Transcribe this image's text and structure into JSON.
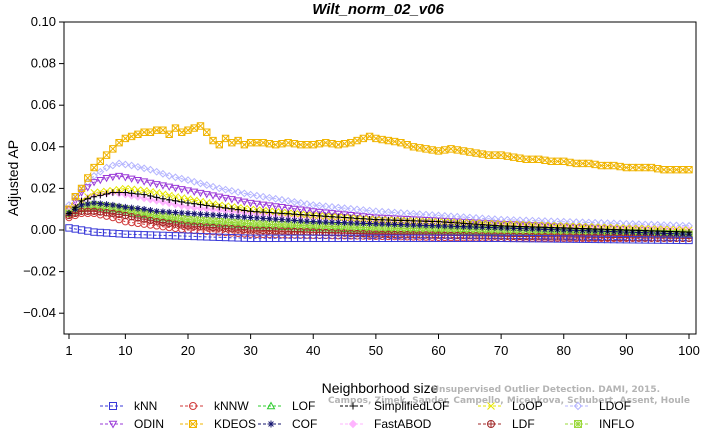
{
  "chart_data": {
    "type": "line",
    "title": "Wilt_norm_02_v06",
    "xlabel": "Neighborhood size",
    "ylabel": "Adjusted AP",
    "xlim": [
      0,
      100
    ],
    "ylim": [
      -0.05,
      0.1
    ],
    "x_ticks": [
      1,
      10,
      20,
      30,
      40,
      50,
      60,
      70,
      80,
      90,
      100
    ],
    "y_ticks": [
      -0.04,
      -0.02,
      0.0,
      0.02,
      0.04,
      0.06,
      0.08,
      0.1
    ],
    "y_tick_labels": [
      "−0.04",
      "−0.02",
      "0.00",
      "0.02",
      "0.04",
      "0.06",
      "0.08",
      "0.10"
    ],
    "grid": false,
    "legend_position": "bottom",
    "watermark": [
      "Unsupervised Outlier Detection. DAMI, 2015.",
      "Campos, Zimek, Sander, Campello, Micenkova, Schubert, Assent, Houle"
    ],
    "series": [
      {
        "name": "kNN",
        "color": "#3a3ad8",
        "marker": "square",
        "x": [
          1,
          5,
          10,
          20,
          30,
          50,
          70,
          100
        ],
        "y": [
          0.001,
          -0.001,
          -0.002,
          -0.003,
          -0.004,
          -0.004,
          -0.004,
          -0.005
        ]
      },
      {
        "name": "kNNW",
        "color": "#d03a3a",
        "marker": "circle",
        "x": [
          1,
          3,
          5,
          8,
          10,
          15,
          20,
          30,
          50,
          70,
          100
        ],
        "y": [
          0.006,
          0.008,
          0.008,
          0.006,
          0.004,
          0.002,
          0.0,
          -0.002,
          -0.003,
          -0.004,
          -0.004
        ]
      },
      {
        "name": "LOF",
        "color": "#2ecc2e",
        "marker": "triangle-up",
        "x": [
          1,
          3,
          5,
          8,
          10,
          15,
          20,
          30,
          50,
          70,
          100
        ],
        "y": [
          0.008,
          0.01,
          0.011,
          0.01,
          0.009,
          0.006,
          0.004,
          0.002,
          0.0,
          -0.001,
          -0.002
        ]
      },
      {
        "name": "SimplifiedLOF",
        "color": "#000000",
        "marker": "plus",
        "x": [
          1,
          3,
          5,
          8,
          10,
          13,
          16,
          20,
          25,
          30,
          40,
          50,
          60,
          70,
          80,
          90,
          100
        ],
        "y": [
          0.008,
          0.014,
          0.016,
          0.018,
          0.018,
          0.017,
          0.015,
          0.013,
          0.011,
          0.009,
          0.007,
          0.005,
          0.004,
          0.002,
          0.001,
          0.0,
          -0.001
        ]
      },
      {
        "name": "LoOP",
        "color": "#e6e600",
        "marker": "cross",
        "x": [
          1,
          3,
          5,
          8,
          10,
          13,
          15,
          18,
          20,
          25,
          30,
          40,
          50,
          70,
          100
        ],
        "y": [
          0.008,
          0.014,
          0.018,
          0.019,
          0.02,
          0.019,
          0.018,
          0.016,
          0.015,
          0.012,
          0.01,
          0.007,
          0.005,
          0.003,
          0.0
        ]
      },
      {
        "name": "LDOF",
        "color": "#b4b4ff",
        "marker": "diamond",
        "x": [
          1,
          3,
          5,
          7,
          9,
          11,
          14,
          17,
          20,
          25,
          30,
          40,
          50,
          70,
          100
        ],
        "y": [
          0.012,
          0.02,
          0.026,
          0.03,
          0.032,
          0.031,
          0.029,
          0.026,
          0.024,
          0.02,
          0.017,
          0.012,
          0.009,
          0.005,
          0.002
        ]
      },
      {
        "name": "ODIN",
        "color": "#9a3ad8",
        "marker": "triangle-down",
        "x": [
          1,
          3,
          5,
          7,
          9,
          12,
          15,
          20,
          25,
          30,
          40,
          50,
          70,
          100
        ],
        "y": [
          0.01,
          0.018,
          0.023,
          0.025,
          0.026,
          0.024,
          0.022,
          0.019,
          0.016,
          0.013,
          0.009,
          0.006,
          0.003,
          -0.001
        ]
      },
      {
        "name": "KDEOS",
        "color": "#f0b400",
        "marker": "square-x",
        "x": [
          1,
          2,
          3,
          4,
          5,
          6,
          7,
          8,
          9,
          10,
          11,
          12,
          13,
          14,
          15,
          16,
          17,
          18,
          19,
          20,
          21,
          22,
          23,
          24,
          25,
          26,
          27,
          28,
          29,
          30,
          32,
          34,
          36,
          38,
          40,
          42,
          44,
          46,
          48,
          49,
          50,
          52,
          54,
          56,
          58,
          60,
          62,
          64,
          66,
          68,
          70,
          72,
          74,
          76,
          78,
          80,
          82,
          84,
          86,
          88,
          90,
          92,
          94,
          96,
          98,
          100
        ],
        "y": [
          0.01,
          0.016,
          0.02,
          0.025,
          0.03,
          0.033,
          0.036,
          0.039,
          0.042,
          0.044,
          0.045,
          0.046,
          0.047,
          0.047,
          0.048,
          0.048,
          0.046,
          0.049,
          0.047,
          0.048,
          0.049,
          0.05,
          0.047,
          0.043,
          0.041,
          0.044,
          0.042,
          0.043,
          0.041,
          0.042,
          0.042,
          0.041,
          0.042,
          0.041,
          0.041,
          0.042,
          0.041,
          0.042,
          0.044,
          0.045,
          0.044,
          0.043,
          0.042,
          0.04,
          0.039,
          0.038,
          0.039,
          0.038,
          0.037,
          0.036,
          0.036,
          0.035,
          0.034,
          0.034,
          0.033,
          0.033,
          0.032,
          0.032,
          0.031,
          0.031,
          0.03,
          0.03,
          0.03,
          0.029,
          0.029,
          0.029
        ]
      },
      {
        "name": "COF",
        "color": "#14146e",
        "marker": "asterisk",
        "x": [
          1,
          3,
          5,
          8,
          10,
          13,
          15,
          20,
          25,
          30,
          40,
          50,
          70,
          100
        ],
        "y": [
          0.008,
          0.012,
          0.013,
          0.012,
          0.011,
          0.01,
          0.009,
          0.008,
          0.007,
          0.006,
          0.004,
          0.003,
          0.001,
          -0.002
        ]
      },
      {
        "name": "FastABOD",
        "color": "#ffb4ff",
        "marker": "diamond-filled",
        "x": [
          1,
          3,
          5,
          8,
          10,
          15,
          20,
          30,
          50,
          70,
          100
        ],
        "y": [
          0.009,
          0.014,
          0.017,
          0.018,
          0.017,
          0.014,
          0.011,
          0.008,
          0.004,
          0.002,
          0.0
        ]
      },
      {
        "name": "LDF",
        "color": "#a02828",
        "marker": "circle-plus",
        "x": [
          1,
          3,
          5,
          8,
          10,
          15,
          20,
          30,
          50,
          70,
          100
        ],
        "y": [
          0.007,
          0.009,
          0.009,
          0.008,
          0.007,
          0.004,
          0.002,
          0.0,
          -0.002,
          -0.003,
          -0.004
        ]
      },
      {
        "name": "INFLO",
        "color": "#9ad83a",
        "marker": "square-star",
        "x": [
          1,
          3,
          5,
          8,
          10,
          15,
          20,
          30,
          50,
          70,
          100
        ],
        "y": [
          0.008,
          0.011,
          0.012,
          0.011,
          0.01,
          0.007,
          0.005,
          0.003,
          0.001,
          0.0,
          -0.002
        ]
      }
    ]
  }
}
